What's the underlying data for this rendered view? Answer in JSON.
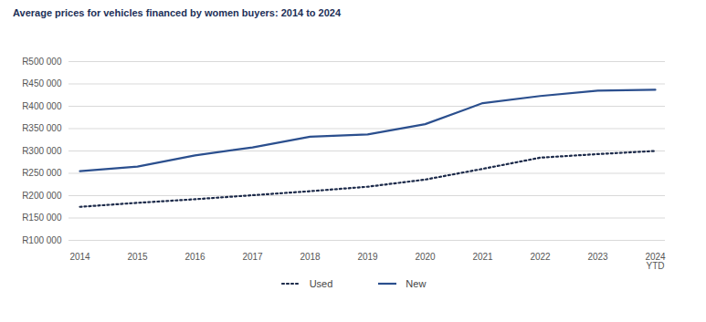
{
  "chart_data": {
    "type": "line",
    "title": "Average prices for vehicles financed by women buyers: 2014 to 2024",
    "categories": [
      "2014",
      "2015",
      "2016",
      "2017",
      "2018",
      "2019",
      "2020",
      "2021",
      "2022",
      "2023",
      "2024 YTD"
    ],
    "series": [
      {
        "name": "Used",
        "color": "#1c2a4a",
        "line_style": "dotted",
        "values": [
          175000,
          184000,
          192000,
          201000,
          210000,
          220000,
          236000,
          260000,
          285000,
          293000,
          300000
        ]
      },
      {
        "name": "New",
        "color": "#2b4f8e",
        "line_style": "solid",
        "values": [
          255000,
          265000,
          290000,
          308000,
          332000,
          337000,
          360000,
          407000,
          423000,
          435000,
          437000
        ]
      }
    ],
    "ylim": [
      100000,
      500000
    ],
    "yticks": [
      {
        "value": 100000,
        "label": "R100 000"
      },
      {
        "value": 150000,
        "label": "R150 000"
      },
      {
        "value": 200000,
        "label": "R200 000"
      },
      {
        "value": 250000,
        "label": "R250 000"
      },
      {
        "value": 300000,
        "label": "R300 000"
      },
      {
        "value": 350000,
        "label": "R350 000"
      },
      {
        "value": 400000,
        "label": "R400 000"
      },
      {
        "value": 450000,
        "label": "R450 000"
      },
      {
        "value": 500000,
        "label": "R500 000"
      }
    ],
    "grid": true,
    "legend": "bottom"
  }
}
